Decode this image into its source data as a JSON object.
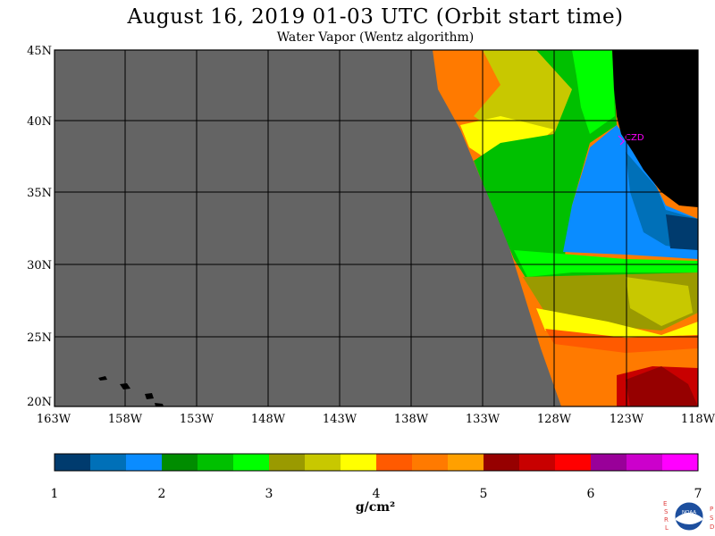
{
  "header": {
    "title": "August 16, 2019  01-03 UTC  (Orbit start time)",
    "subtitle": "Water Vapor (Wentz algorithm)"
  },
  "axes": {
    "lat_labels": [
      "45N",
      "40N",
      "35N",
      "30N",
      "25N",
      "20N"
    ],
    "lon_labels": [
      "163W",
      "158W",
      "153W",
      "148W",
      "143W",
      "138W",
      "133W",
      "128W",
      "123W",
      "118W"
    ]
  },
  "annotation": {
    "station": "CZD"
  },
  "colorbar": {
    "tick_labels": [
      "1",
      "2",
      "3",
      "4",
      "5",
      "6",
      "7"
    ],
    "unit": "g/cm²",
    "colors": [
      "#003b6e",
      "#0070b8",
      "#0a8cff",
      "#008c00",
      "#00c000",
      "#00ff00",
      "#9a9a00",
      "#c8c800",
      "#ffff00",
      "#ff5a00",
      "#ff7a00",
      "#ffa000",
      "#960000",
      "#c80000",
      "#ff0000",
      "#990099",
      "#cc00cc",
      "#ff00ff"
    ]
  },
  "colors": {
    "nodata": "#646464",
    "land": "#000000",
    "station": "#ff00ff"
  },
  "logo": {
    "left_letters": "ESRL",
    "right_letters": "PSD",
    "center_text": "NOAA"
  }
}
